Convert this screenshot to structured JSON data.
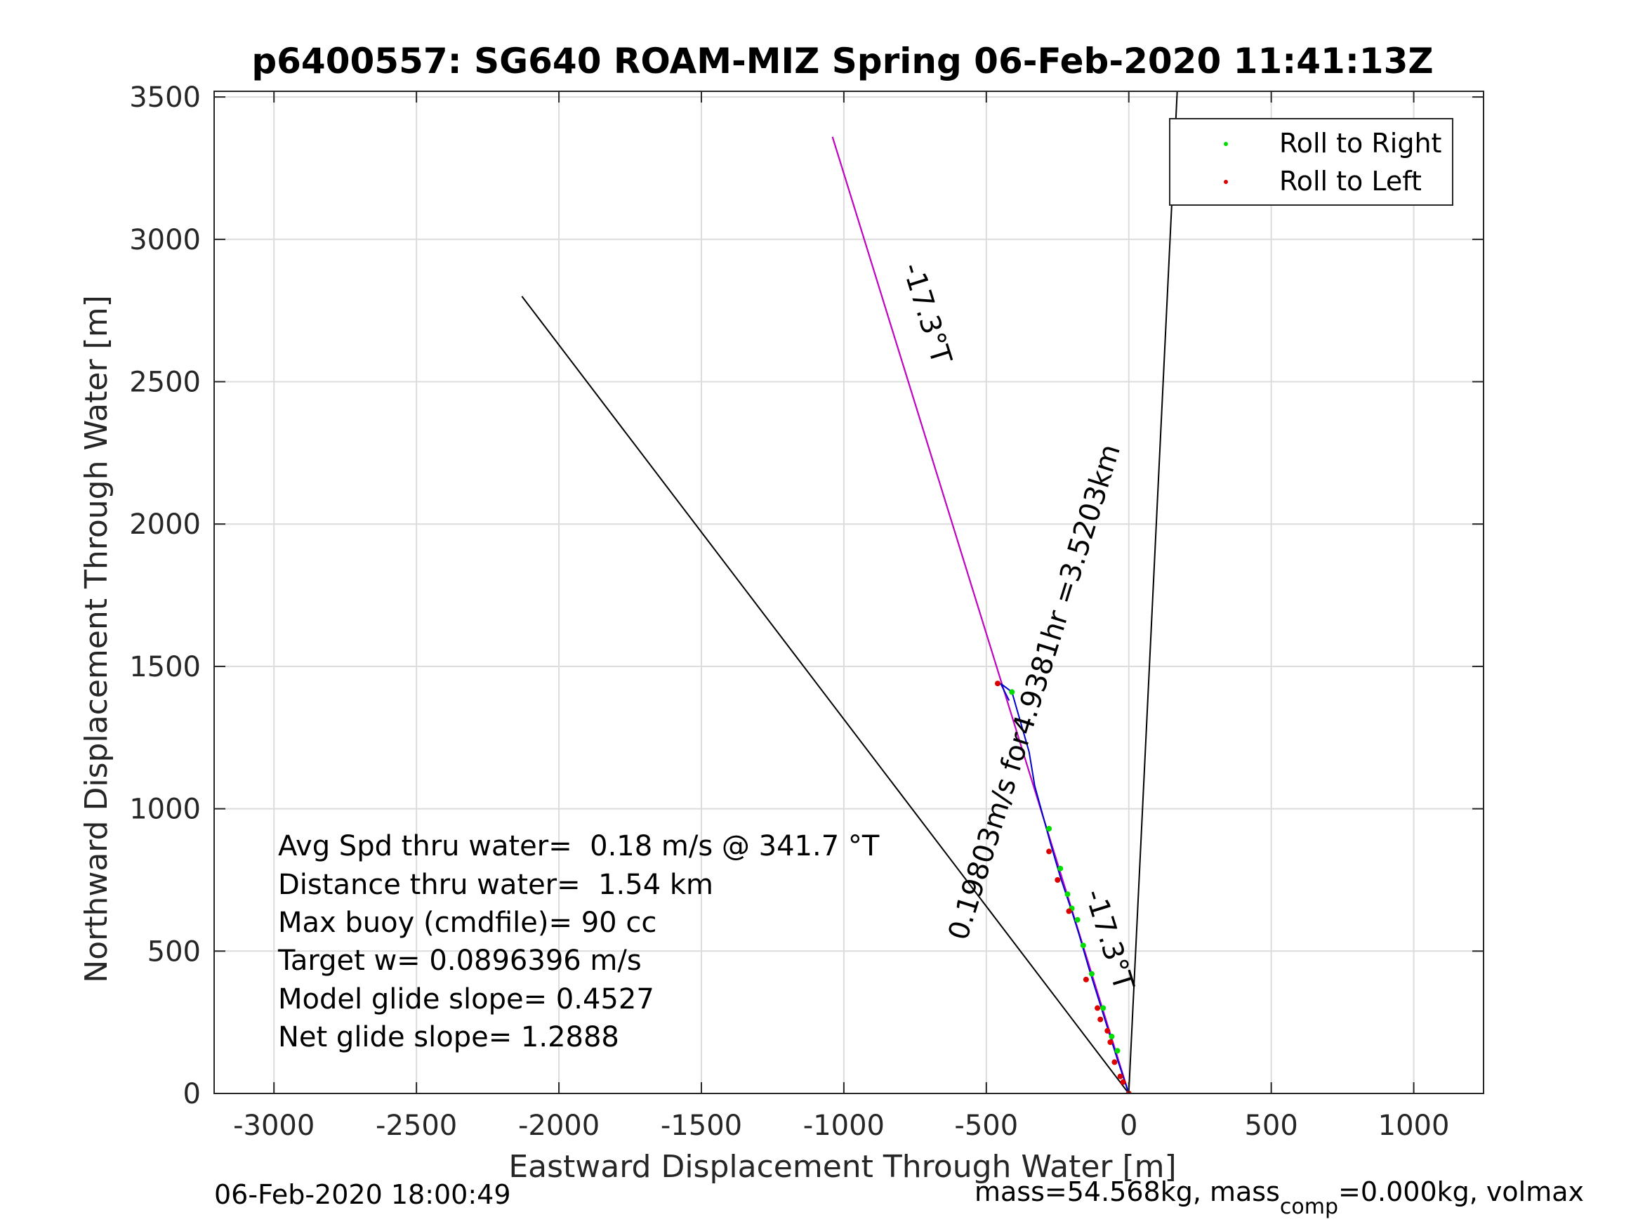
{
  "chart_data": {
    "type": "line",
    "title": "p6400557: SG640 ROAM-MIZ Spring 06-Feb-2020 11:41:13Z",
    "xlabel": "Eastward Displacement Through Water [m]",
    "ylabel": "Northward Displacement Through Water [m]",
    "xlim": [
      -3210,
      1245
    ],
    "ylim": [
      0,
      3520
    ],
    "xticks": [
      -3000,
      -2500,
      -2000,
      -1500,
      -1000,
      -500,
      0,
      500,
      1000
    ],
    "xtick_labels": [
      "-3000",
      "-2500",
      "-2000",
      "-1500",
      "-1000",
      "-500",
      "0",
      "500",
      "1000"
    ],
    "yticks": [
      0,
      500,
      1000,
      1500,
      2000,
      2500,
      3000,
      3500
    ],
    "ytick_labels": [
      "0",
      "500",
      "1000",
      "1500",
      "2000",
      "2500",
      "3000",
      "3500"
    ],
    "grid": true,
    "legend_position": "top-right",
    "legend": [
      {
        "label": "Roll to Right",
        "color": "#00dd00"
      },
      {
        "label": "Roll to Left",
        "color": "#dd0000"
      }
    ],
    "series": [
      {
        "name": "Roll to Right",
        "color": "#00dd00",
        "points": [
          [
            -40,
            150
          ],
          [
            -90,
            300
          ],
          [
            -130,
            420
          ],
          [
            -160,
            520
          ],
          [
            -180,
            610
          ],
          [
            -215,
            700
          ],
          [
            -240,
            790
          ],
          [
            -280,
            930
          ],
          [
            -410,
            1410
          ],
          [
            -60,
            200
          ],
          [
            -200,
            650
          ]
        ]
      },
      {
        "name": "Roll to Left",
        "color": "#dd0000",
        "points": [
          [
            0,
            0
          ],
          [
            -30,
            60
          ],
          [
            -50,
            110
          ],
          [
            -65,
            180
          ],
          [
            -75,
            220
          ],
          [
            -100,
            260
          ],
          [
            -110,
            300
          ],
          [
            -150,
            400
          ],
          [
            -210,
            640
          ],
          [
            -250,
            750
          ],
          [
            -280,
            850
          ],
          [
            -460,
            1440
          ],
          [
            -20,
            40
          ]
        ]
      }
    ],
    "lines": [
      {
        "color": "#000000",
        "points": [
          [
            0,
            0
          ],
          [
            -2130,
            2800
          ]
        ]
      },
      {
        "color": "#000000",
        "points": [
          [
            0,
            0
          ],
          [
            170,
            3520
          ]
        ]
      },
      {
        "color": "#000000",
        "points": [
          [
            0,
            0
          ],
          [
            -1040,
            3360
          ]
        ]
      },
      {
        "color": "#cc00cc",
        "points": [
          [
            0,
            0
          ],
          [
            -1040,
            3360
          ]
        ]
      },
      {
        "color": "#0000cc",
        "points": [
          [
            0,
            0
          ],
          [
            -40,
            120
          ],
          [
            -90,
            280
          ],
          [
            -140,
            440
          ],
          [
            -175,
            560
          ],
          [
            -200,
            640
          ],
          [
            -240,
            760
          ],
          [
            -275,
            880
          ],
          [
            -330,
            1080
          ],
          [
            -350,
            1200
          ],
          [
            -410,
            1410
          ],
          [
            -450,
            1440
          ],
          [
            -420,
            1380
          ]
        ]
      }
    ],
    "annotations": [
      {
        "text": "-17.3°T",
        "x": -740,
        "y": 2730,
        "rotation": 72.7
      },
      {
        "text": "0.19803m/s for4.9381hr =3.5203km",
        "x": -300,
        "y": 1400,
        "rotation": -72.7
      },
      {
        "text": "-17.3°T",
        "x": -100,
        "y": 530,
        "rotation": 72.7
      }
    ],
    "stats": [
      "Avg Spd thru water=  0.18 m/s @ 341.7 °T",
      "Distance thru water=  1.54 km",
      "Max buoy (cmdfile)= 90 cc",
      "Target w= 0.0896396 m/s",
      "Model glide slope= 0.4527",
      "Net glide slope= 1.2888"
    ]
  },
  "footer": {
    "timestamp": "06-Feb-2020 18:00:49",
    "mass_prefix": "mass=54.568kg, mass",
    "mass_sub": "comp",
    "mass_suffix": "=0.000kg, volmax"
  }
}
